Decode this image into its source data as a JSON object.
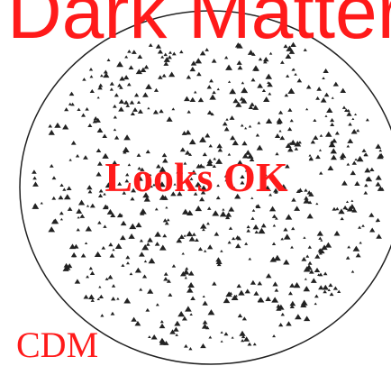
{
  "slide": {
    "title": "Dark Matter",
    "caption": "Looks OK",
    "label": "CDM"
  }
}
